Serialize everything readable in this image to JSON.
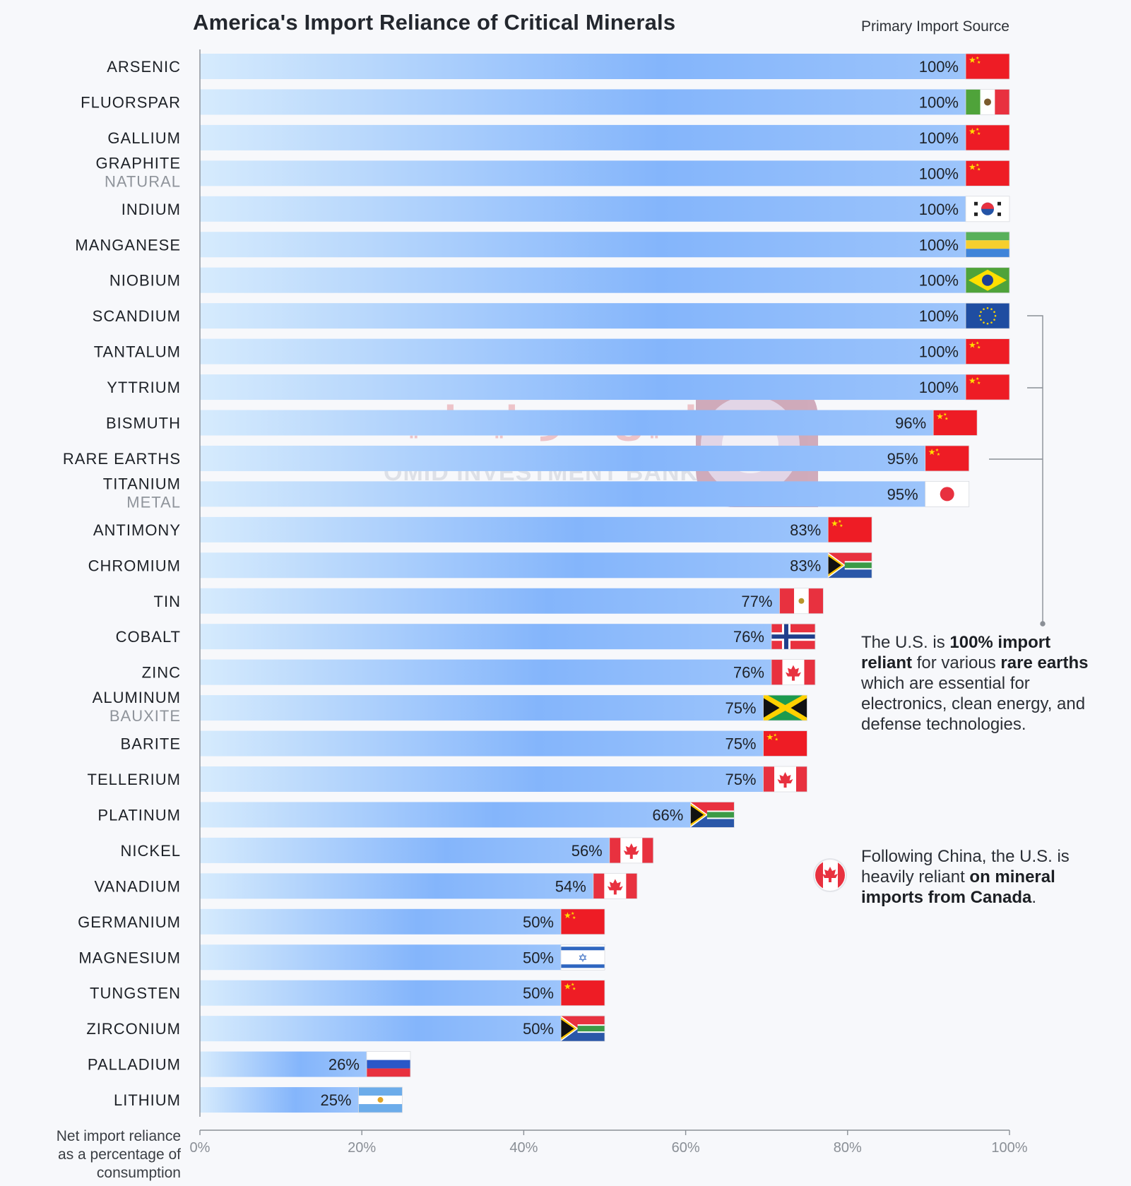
{
  "title": "America's Import Reliance of Critical Minerals",
  "source_header": "Primary Import Source",
  "axis_note": [
    "Net import reliance",
    "as a percentage of",
    "consumption"
  ],
  "annotation_rare_earths": {
    "p1": "The U.S. is ",
    "b1": "100% import reliant",
    "p2": " for various ",
    "b2": "rare earths",
    "p3": " which are essential for electronics, clean energy, and defense technologies."
  },
  "annotation_canada": {
    "p1": "Following China, the U.S. is heavily reliant ",
    "b1": "on mineral imports from Canada",
    "p2": "."
  },
  "watermark": {
    "fa": "تامین سرمایه امید",
    "en": "OMID INVESTMENT BANK"
  },
  "colors": {
    "bar_start": "#d4e9fd",
    "bar_end": "#7eb1fb",
    "axis": "#8a8f96",
    "watermark": "#d44a55"
  },
  "chart_data": {
    "type": "bar",
    "orientation": "horizontal",
    "title": "America's Import Reliance of Critical Minerals",
    "xlabel": "Net import reliance as a percentage of consumption",
    "xlim": [
      0,
      100
    ],
    "xticks": [
      "0%",
      "20%",
      "40%",
      "60%",
      "80%",
      "100%"
    ],
    "items": [
      {
        "name": "ARSENIC",
        "sub": "",
        "value": 100,
        "label": "100%",
        "source": "China"
      },
      {
        "name": "FLUORSPAR",
        "sub": "",
        "value": 100,
        "label": "100%",
        "source": "Mexico"
      },
      {
        "name": "GALLIUM",
        "sub": "",
        "value": 100,
        "label": "100%",
        "source": "China"
      },
      {
        "name": "GRAPHITE",
        "sub": "NATURAL",
        "value": 100,
        "label": "100%",
        "source": "China"
      },
      {
        "name": "INDIUM",
        "sub": "",
        "value": 100,
        "label": "100%",
        "source": "South Korea"
      },
      {
        "name": "MANGANESE",
        "sub": "",
        "value": 100,
        "label": "100%",
        "source": "Gabon"
      },
      {
        "name": "NIOBIUM",
        "sub": "",
        "value": 100,
        "label": "100%",
        "source": "Brazil"
      },
      {
        "name": "SCANDIUM",
        "sub": "",
        "value": 100,
        "label": "100%",
        "source": "European Union"
      },
      {
        "name": "TANTALUM",
        "sub": "",
        "value": 100,
        "label": "100%",
        "source": "China"
      },
      {
        "name": "YTTRIUM",
        "sub": "",
        "value": 100,
        "label": "100%",
        "source": "China"
      },
      {
        "name": "BISMUTH",
        "sub": "",
        "value": 96,
        "label": "96%",
        "source": "China"
      },
      {
        "name": "RARE EARTHS",
        "sub": "",
        "value": 95,
        "label": "95%",
        "source": "China"
      },
      {
        "name": "TITANIUM",
        "sub": "METAL",
        "value": 95,
        "label": "95%",
        "source": "Japan"
      },
      {
        "name": "ANTIMONY",
        "sub": "",
        "value": 83,
        "label": "83%",
        "source": "China"
      },
      {
        "name": "CHROMIUM",
        "sub": "",
        "value": 83,
        "label": "83%",
        "source": "South Africa"
      },
      {
        "name": "TIN",
        "sub": "",
        "value": 77,
        "label": "77%",
        "source": "Peru"
      },
      {
        "name": "COBALT",
        "sub": "",
        "value": 76,
        "label": "76%",
        "source": "Norway"
      },
      {
        "name": "ZINC",
        "sub": "",
        "value": 76,
        "label": "76%",
        "source": "Canada"
      },
      {
        "name": "ALUMINUM",
        "sub": "BAUXITE",
        "value": 75,
        "label": "75%",
        "source": "Jamaica"
      },
      {
        "name": "BARITE",
        "sub": "",
        "value": 75,
        "label": "75%",
        "source": "China"
      },
      {
        "name": "TELLERIUM",
        "sub": "",
        "value": 75,
        "label": "75%",
        "source": "Canada"
      },
      {
        "name": "PLATINUM",
        "sub": "",
        "value": 66,
        "label": "66%",
        "source": "South Africa"
      },
      {
        "name": "NICKEL",
        "sub": "",
        "value": 56,
        "label": "56%",
        "source": "Canada"
      },
      {
        "name": "VANADIUM",
        "sub": "",
        "value": 54,
        "label": "54%",
        "source": "Canada"
      },
      {
        "name": "GERMANIUM",
        "sub": "",
        "value": 50,
        "label": "50%",
        "source": "China"
      },
      {
        "name": "MAGNESIUM",
        "sub": "",
        "value": 50,
        "label": "50%",
        "source": "Israel"
      },
      {
        "name": "TUNGSTEN",
        "sub": "",
        "value": 50,
        "label": "50%",
        "source": "China"
      },
      {
        "name": "ZIRCONIUM",
        "sub": "",
        "value": 50,
        "label": "50%",
        "source": "South Africa"
      },
      {
        "name": "PALLADIUM",
        "sub": "",
        "value": 26,
        "label": "26%",
        "source": "Russia"
      },
      {
        "name": "LITHIUM",
        "sub": "",
        "value": 25,
        "label": "25%",
        "source": "Argentina"
      }
    ]
  }
}
